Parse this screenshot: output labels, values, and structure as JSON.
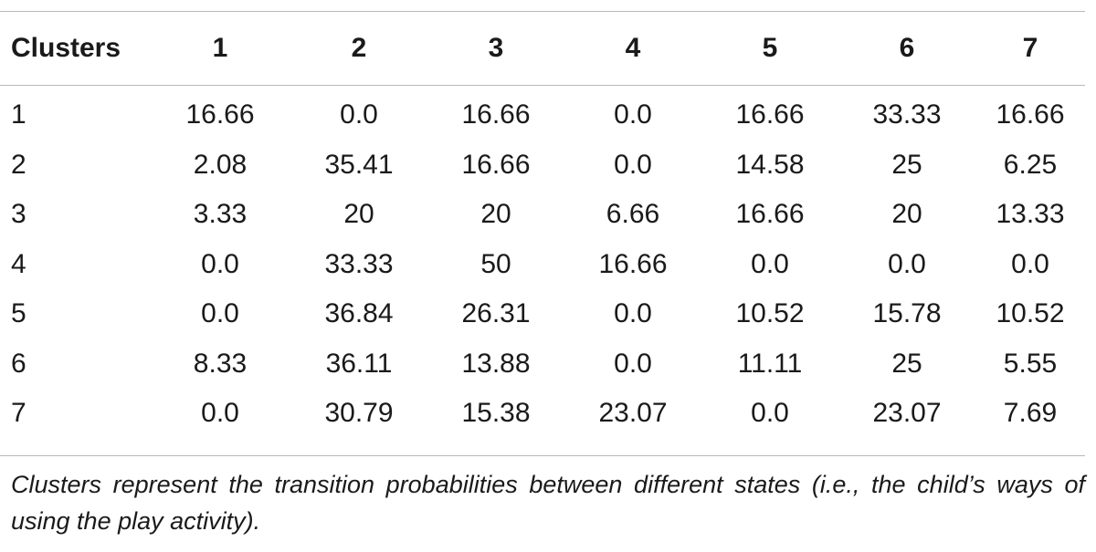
{
  "table": {
    "header": [
      "Clusters",
      "1",
      "2",
      "3",
      "4",
      "5",
      "6",
      "7"
    ],
    "rows": [
      [
        "1",
        "16.66",
        "0.0",
        "16.66",
        "0.0",
        "16.66",
        "33.33",
        "16.66"
      ],
      [
        "2",
        "2.08",
        "35.41",
        "16.66",
        "0.0",
        "14.58",
        "25",
        "6.25"
      ],
      [
        "3",
        "3.33",
        "20",
        "20",
        "6.66",
        "16.66",
        "20",
        "13.33"
      ],
      [
        "4",
        "0.0",
        "33.33",
        "50",
        "16.66",
        "0.0",
        "0.0",
        "0.0"
      ],
      [
        "5",
        "0.0",
        "36.84",
        "26.31",
        "0.0",
        "10.52",
        "15.78",
        "10.52"
      ],
      [
        "6",
        "8.33",
        "36.11",
        "13.88",
        "0.0",
        "11.11",
        "25",
        "5.55"
      ],
      [
        "7",
        "0.0",
        "30.79",
        "15.38",
        "23.07",
        "0.0",
        "23.07",
        "7.69"
      ]
    ]
  },
  "footnote": "Clusters represent the transition probabilities between different states (i.e., the child’s ways of using the play activity)."
}
